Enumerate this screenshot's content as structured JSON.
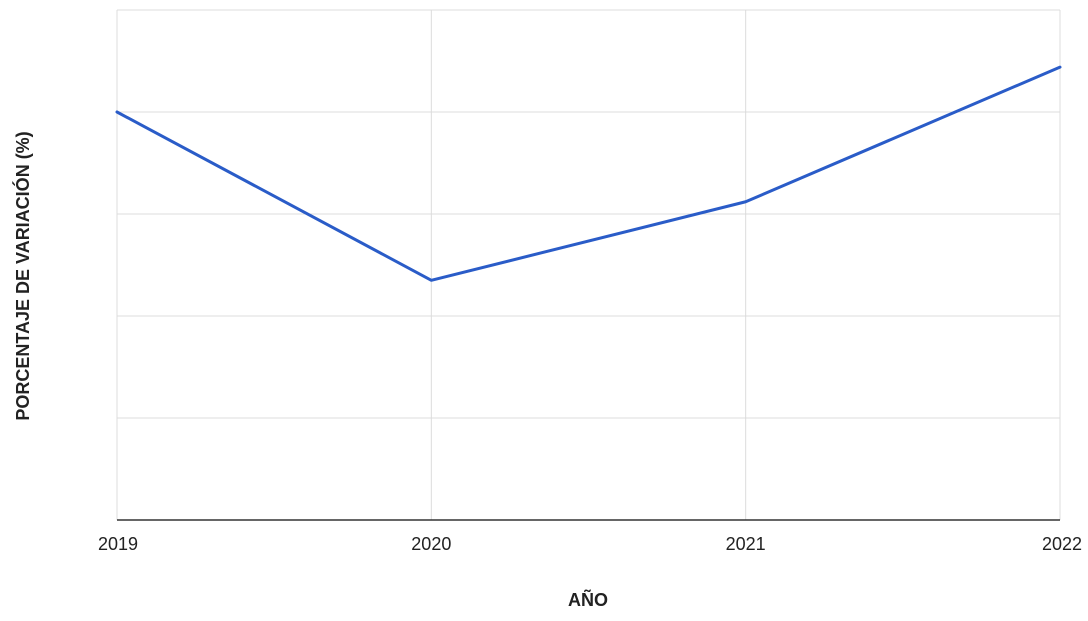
{
  "chart_data": {
    "type": "line",
    "title": "",
    "xlabel": "AÑO",
    "ylabel": "PORCENTAJE DE VARIACIÓN (%)",
    "categories": [
      "2019",
      "2020",
      "2021",
      "2022"
    ],
    "series": [
      {
        "values": [
          4.0,
          2.35,
          3.12,
          4.44
        ]
      }
    ],
    "ylim": [
      0,
      5
    ],
    "y_gridlines": [
      0,
      1,
      2,
      3,
      4,
      5
    ],
    "y_tick_labels_visible": false,
    "x_gridlines": true,
    "legend": "none",
    "colors": {
      "line": "#2a5cc8",
      "grid": "#dcdcdc",
      "baseline": "#333333",
      "text": "#222222"
    }
  }
}
